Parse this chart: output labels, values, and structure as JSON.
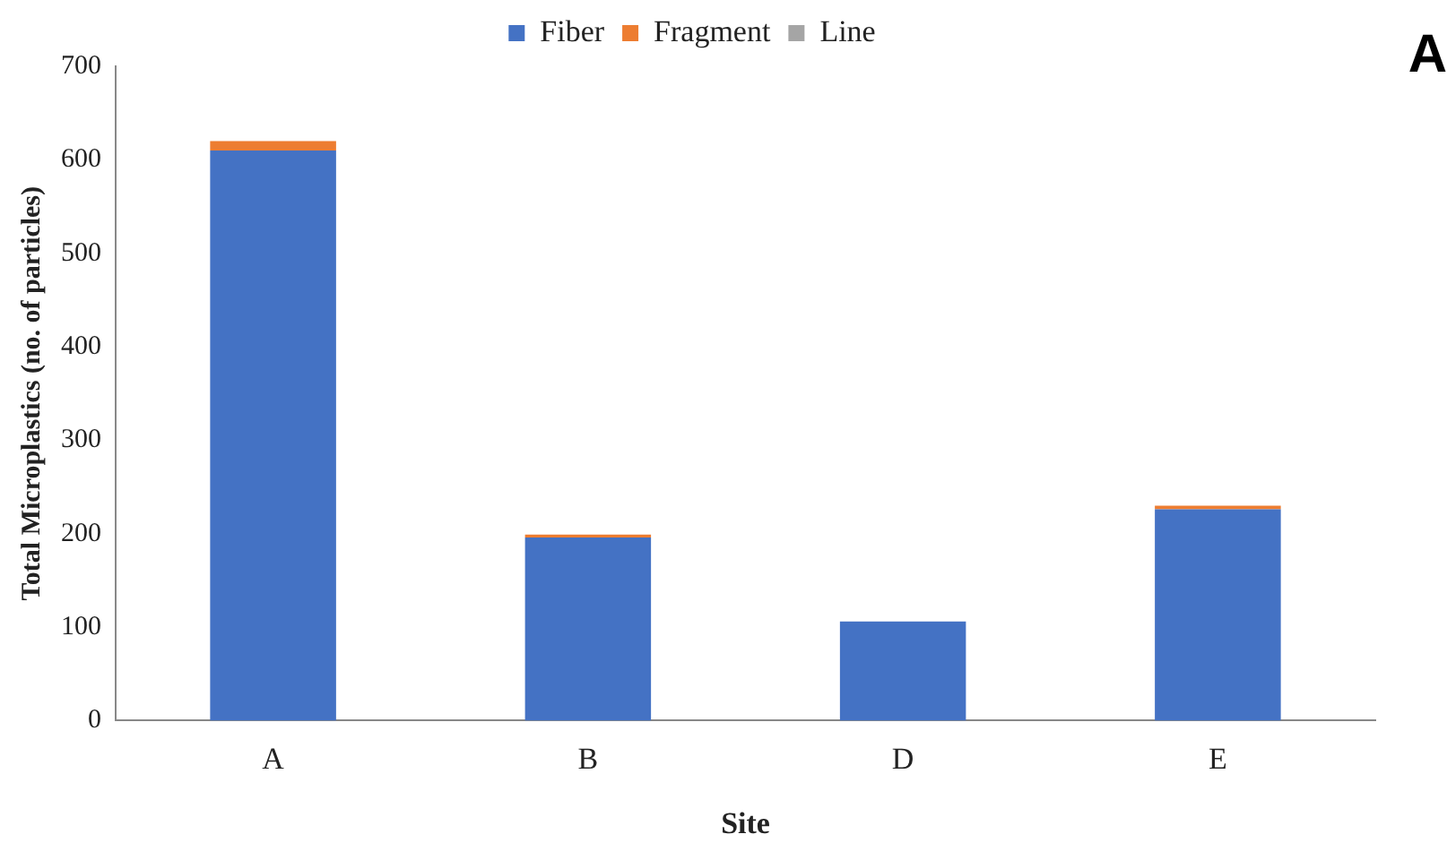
{
  "chart_data": {
    "type": "bar",
    "stacked": true,
    "xlabel": "Site",
    "ylabel": "Total Microplastics (no. of particles)",
    "categories": [
      "A",
      "B",
      "D",
      "E"
    ],
    "series": [
      {
        "name": "Fiber",
        "color": "#4472c4",
        "values": [
          610,
          196,
          106,
          226
        ]
      },
      {
        "name": "Fragment",
        "color": "#ed7d31",
        "values": [
          10,
          3,
          0,
          4
        ]
      },
      {
        "name": "Line",
        "color": "#a5a5a5",
        "values": [
          0,
          0,
          0,
          0
        ]
      }
    ],
    "ylim": [
      0,
      700
    ],
    "yticks": [
      0,
      100,
      200,
      300,
      400,
      500,
      600,
      700
    ],
    "grid": false,
    "legend": "top",
    "annotations": [
      "A"
    ]
  }
}
